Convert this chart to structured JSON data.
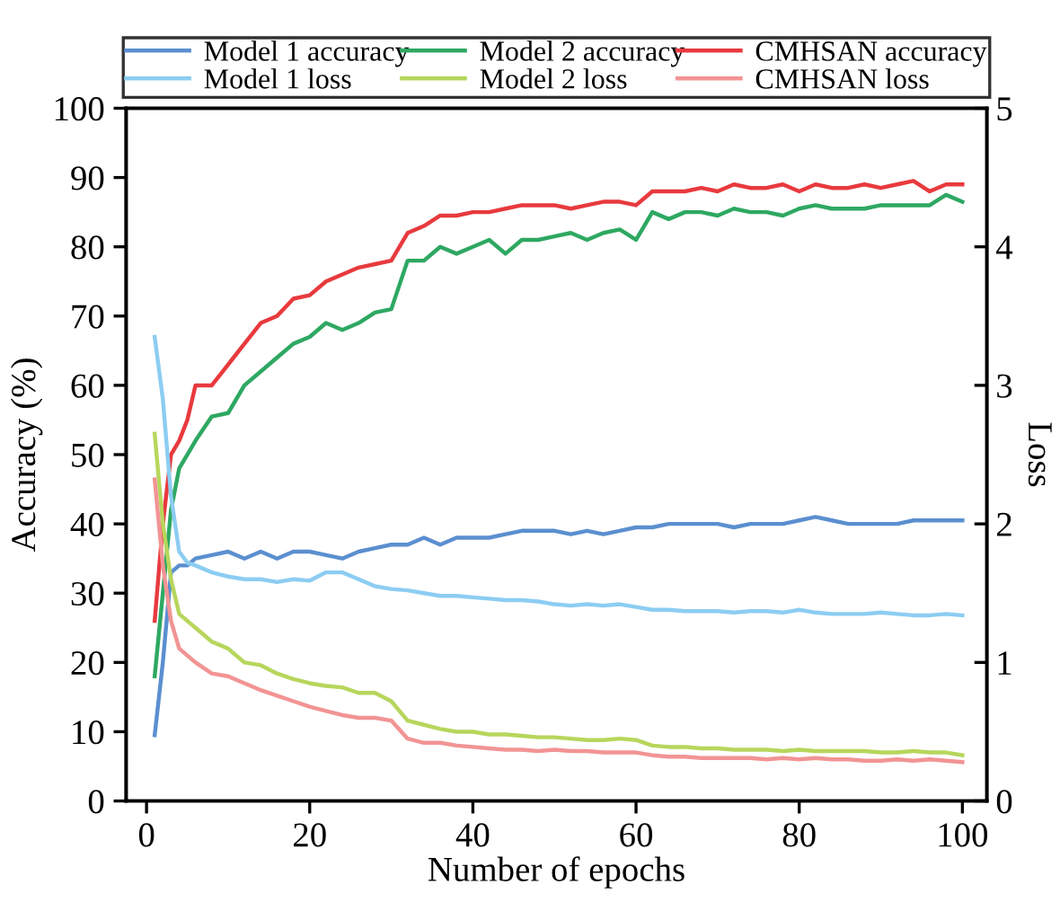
{
  "chart_data": {
    "type": "line",
    "xlabel": "Number of epochs",
    "ylabel": "Accuracy (%)",
    "y2label": "Loss",
    "x": [
      1,
      2,
      3,
      4,
      5,
      6,
      8,
      10,
      12,
      14,
      16,
      18,
      20,
      22,
      24,
      26,
      28,
      30,
      32,
      34,
      36,
      38,
      40,
      42,
      44,
      46,
      48,
      50,
      52,
      54,
      56,
      58,
      60,
      62,
      64,
      66,
      68,
      70,
      72,
      74,
      76,
      78,
      80,
      82,
      84,
      86,
      88,
      90,
      92,
      94,
      96,
      98,
      100
    ],
    "xlim": [
      -2.5,
      103
    ],
    "xticks": [
      0,
      20,
      40,
      60,
      80,
      100
    ],
    "ylim": [
      0,
      100
    ],
    "yticks": [
      0,
      10,
      20,
      30,
      40,
      50,
      60,
      70,
      80,
      90,
      100
    ],
    "y2lim": [
      0,
      5
    ],
    "y2ticks": [
      0,
      1,
      2,
      3,
      4,
      5
    ],
    "legend": "top",
    "grid": false,
    "series": [
      {
        "name": "Model 1 accuracy",
        "color": "#5b8fcf",
        "values": [
          9.5,
          20,
          33,
          34,
          34,
          35,
          35.5,
          36,
          35,
          36,
          35,
          36,
          36,
          35.5,
          35,
          36,
          36.5,
          37,
          37,
          38,
          37,
          38,
          38,
          38,
          38.5,
          39,
          39,
          39,
          38.5,
          39,
          38.5,
          39,
          39.5,
          39.5,
          40,
          40,
          40,
          40,
          39.5,
          40,
          40,
          40,
          40.5,
          41,
          40.5,
          40,
          40,
          40,
          40,
          40.5,
          40.5,
          40.5,
          40.5
        ]
      },
      {
        "name": "Model 2 accuracy",
        "color": "#2ea862",
        "values": [
          18,
          30,
          42,
          48,
          50,
          52,
          55.5,
          56,
          60,
          62,
          64,
          66,
          67,
          69,
          68,
          69,
          70.5,
          71,
          78,
          78,
          80,
          79,
          80,
          81,
          79,
          81,
          81,
          81.5,
          82,
          81,
          82,
          82.5,
          81,
          85,
          84,
          85,
          85,
          84.5,
          85.5,
          85,
          85,
          84.5,
          85.5,
          86,
          85.5,
          85.5,
          85.5,
          86,
          86,
          86,
          86,
          87.5,
          86.5
        ]
      },
      {
        "name": "CMHSAN accuracy",
        "color": "#e83a3e",
        "values": [
          26,
          40,
          50,
          52,
          55,
          60,
          60,
          63,
          66,
          69,
          70,
          72.5,
          73,
          75,
          76,
          77,
          77.5,
          78,
          82,
          83,
          84.5,
          84.5,
          85,
          85,
          85.5,
          86,
          86,
          86,
          85.5,
          86,
          86.5,
          86.5,
          86,
          88,
          88,
          88,
          88.5,
          88,
          89,
          88.5,
          88.5,
          89,
          88,
          89,
          88.5,
          88.5,
          89,
          88.5,
          89,
          89.5,
          88,
          89,
          89
        ]
      },
      {
        "name": "Model 1 loss",
        "color": "#8ccdf2",
        "axis": "y2",
        "values": [
          3.35,
          2.9,
          2.2,
          1.8,
          1.72,
          1.7,
          1.65,
          1.62,
          1.6,
          1.6,
          1.58,
          1.6,
          1.59,
          1.65,
          1.65,
          1.6,
          1.55,
          1.53,
          1.52,
          1.5,
          1.48,
          1.48,
          1.47,
          1.46,
          1.45,
          1.45,
          1.44,
          1.42,
          1.41,
          1.42,
          1.41,
          1.42,
          1.4,
          1.38,
          1.38,
          1.37,
          1.37,
          1.37,
          1.36,
          1.37,
          1.37,
          1.36,
          1.38,
          1.36,
          1.35,
          1.35,
          1.35,
          1.36,
          1.35,
          1.34,
          1.34,
          1.35,
          1.34
        ]
      },
      {
        "name": "Model 2 loss",
        "color": "#b7d65c",
        "axis": "y2",
        "values": [
          2.65,
          2.0,
          1.6,
          1.35,
          1.3,
          1.25,
          1.15,
          1.1,
          1.0,
          0.98,
          0.92,
          0.88,
          0.85,
          0.83,
          0.82,
          0.78,
          0.78,
          0.72,
          0.58,
          0.55,
          0.52,
          0.5,
          0.5,
          0.48,
          0.48,
          0.47,
          0.46,
          0.46,
          0.45,
          0.44,
          0.44,
          0.45,
          0.44,
          0.4,
          0.39,
          0.39,
          0.38,
          0.38,
          0.37,
          0.37,
          0.37,
          0.36,
          0.37,
          0.36,
          0.36,
          0.36,
          0.36,
          0.35,
          0.35,
          0.36,
          0.35,
          0.35,
          0.33
        ]
      },
      {
        "name": "CMHSAN loss",
        "color": "#f29494",
        "axis": "y2",
        "values": [
          2.32,
          1.7,
          1.3,
          1.1,
          1.05,
          1.0,
          0.92,
          0.9,
          0.85,
          0.8,
          0.76,
          0.72,
          0.68,
          0.65,
          0.62,
          0.6,
          0.6,
          0.58,
          0.45,
          0.42,
          0.42,
          0.4,
          0.39,
          0.38,
          0.37,
          0.37,
          0.36,
          0.37,
          0.36,
          0.36,
          0.35,
          0.35,
          0.35,
          0.33,
          0.32,
          0.32,
          0.31,
          0.31,
          0.31,
          0.31,
          0.3,
          0.31,
          0.3,
          0.31,
          0.3,
          0.3,
          0.29,
          0.29,
          0.3,
          0.29,
          0.3,
          0.29,
          0.28
        ]
      }
    ]
  }
}
